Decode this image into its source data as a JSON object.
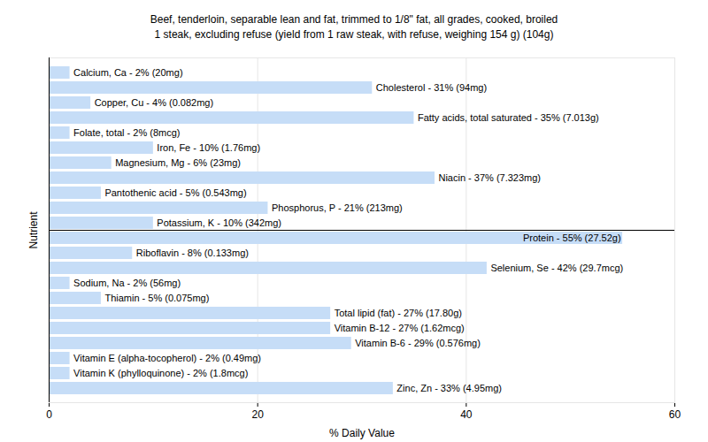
{
  "chart_data": {
    "type": "bar",
    "orientation": "horizontal",
    "title": "Beef, tenderloin, separable lean and fat, trimmed to 1/8\" fat, all grades, cooked, broiled",
    "subtitle": "1 steak, excluding refuse (yield from 1 raw steak, with refuse, weighing 154 g) (104g)",
    "x_label": "% Daily Value",
    "y_label": "Nutrient",
    "categories": [
      "Calcium, Ca - 2% (20mg)",
      "Cholesterol - 31% (94mg)",
      "Copper, Cu - 4% (0.082mg)",
      "Fatty acids, total saturated - 35% (7.013g)",
      "Folate, total - 2% (8mcg)",
      "Iron, Fe - 10% (1.76mg)",
      "Magnesium, Mg - 6% (23mg)",
      "Niacin - 37% (7.323mg)",
      "Pantothenic acid - 5% (0.543mg)",
      "Phosphorus, P - 21% (213mg)",
      "Potassium, K - 10% (342mg)",
      "Protein - 55% (27.52g)",
      "Riboflavin - 8% (0.133mg)",
      "Selenium, Se - 42% (29.7mcg)",
      "Sodium, Na - 2% (56mg)",
      "Thiamin - 5% (0.075mg)",
      "Total lipid (fat) - 27% (17.80g)",
      "Vitamin B-12 - 27% (1.62mcg)",
      "Vitamin B-6 - 29% (0.576mg)",
      "Vitamin E (alpha-tocopherol) - 2% (0.49mg)",
      "Vitamin K (phylloquinone) - 2% (1.8mcg)",
      "Zinc, Zn - 33% (4.95mg)"
    ],
    "values": [
      2,
      31,
      4,
      35,
      2,
      10,
      6,
      37,
      5,
      21,
      10,
      55,
      8,
      42,
      2,
      5,
      27,
      27,
      29,
      2,
      2,
      33
    ],
    "color": "#c6ddf7",
    "xlim": [
      0,
      60
    ],
    "xticks": [
      0,
      20,
      40,
      60
    ],
    "grid": true,
    "tick_labels": "x"
  }
}
